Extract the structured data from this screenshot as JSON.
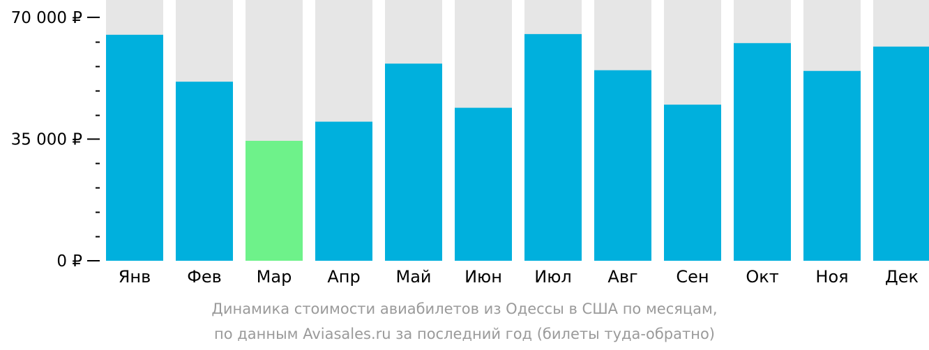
{
  "chart_data": {
    "type": "bar",
    "categories": [
      "Янв",
      "Фев",
      "Мар",
      "Апр",
      "Май",
      "Июн",
      "Июл",
      "Авг",
      "Сен",
      "Окт",
      "Ноя",
      "Дек"
    ],
    "values": [
      65000,
      51500,
      34500,
      40000,
      56700,
      44000,
      65200,
      54800,
      44900,
      62600,
      54600,
      61600
    ],
    "ylim": [
      0,
      75000
    ],
    "yticks": [
      {
        "value": 0,
        "label": "0 ₽"
      },
      {
        "value": 35000,
        "label": "35 000 ₽"
      },
      {
        "value": 70000,
        "label": "70 000 ₽"
      }
    ],
    "minor_tick_step": 7000,
    "highlight_index": 2,
    "title": "",
    "xlabel": "",
    "ylabel": "",
    "grid": false,
    "colors": {
      "bar": "#00b0dd",
      "highlight": "#6ef28a",
      "background_bar": "#e6e6e6",
      "axis_text": "#000000",
      "caption_text": "#9a9a9a"
    }
  },
  "caption": {
    "line1": "Динамика стоимости авиабилетов из Одессы в США по месяцам,",
    "line2": "по данным Aviasales.ru за последний год (билеты туда-обратно)"
  }
}
